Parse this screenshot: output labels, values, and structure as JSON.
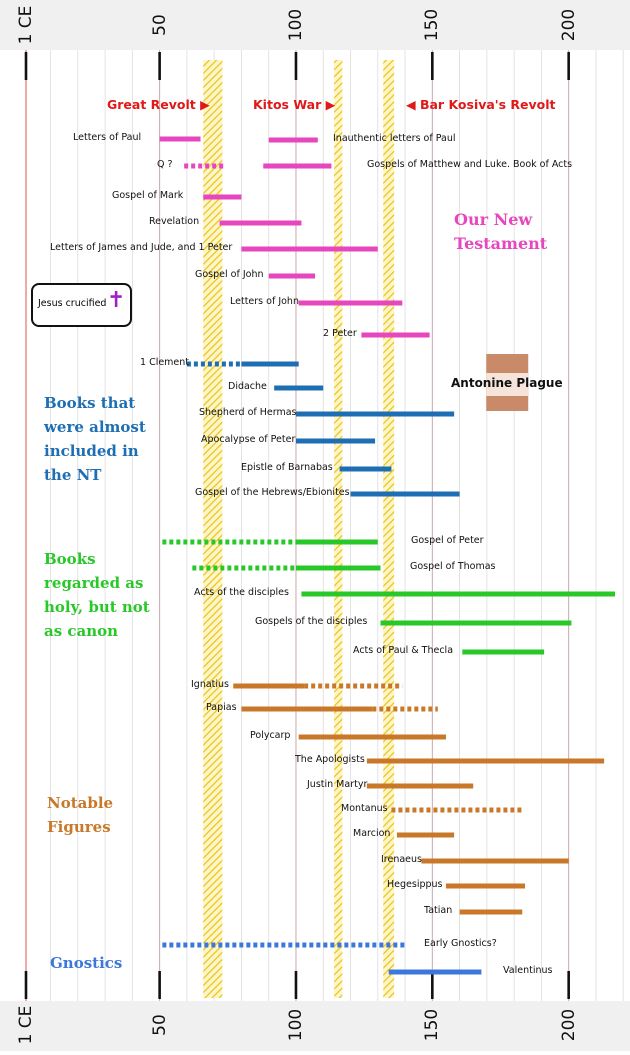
{
  "chart_data": {
    "type": "timeline",
    "axis": {
      "unit": "year CE",
      "min": 1,
      "max": 220,
      "ticks": [
        "1 CE",
        "50",
        "100",
        "150",
        "200"
      ]
    },
    "events": [
      {
        "name": "Great Revolt",
        "start": 66,
        "end": 73,
        "label": "Great Revolt",
        "arrow": "right"
      },
      {
        "name": "Kitos War",
        "start": 114,
        "end": 117,
        "label": "Kitos War",
        "arrow": "right"
      },
      {
        "name": "Bar Kosiva",
        "start": 132,
        "end": 136,
        "label": "Bar Kosiva's Revolt",
        "arrow": "left"
      }
    ],
    "plague": {
      "label": "Antonine Plague",
      "start": 165,
      "end": 180
    },
    "callout": {
      "label": "Jesus crucified",
      "icon": "cross-icon"
    },
    "sections": [
      {
        "name": "new-testament",
        "title": "Our New Testament",
        "color": "#e646be"
      },
      {
        "name": "almost",
        "title": "Books that were almost included in the NT",
        "color": "#1e6eb4"
      },
      {
        "name": "holy",
        "title": "Books regarded as holy, but not as canon",
        "color": "#28c828"
      },
      {
        "name": "figures",
        "title": "Notable Figures",
        "color": "#c87828"
      },
      {
        "name": "gnostics",
        "title": "Gnostics",
        "color": "#3c78dc"
      }
    ],
    "series": [
      {
        "label": "Letters of Paul",
        "color": "#e646be",
        "segs": [
          [
            50,
            65,
            "solid"
          ]
        ]
      },
      {
        "label": "Inauthentic letters of Paul",
        "color": "#e646be",
        "segs": [
          [
            90,
            108,
            "solid"
          ]
        ]
      },
      {
        "label": "Q ?",
        "color": "#e646be",
        "segs": [
          [
            59,
            74,
            "dotted"
          ]
        ]
      },
      {
        "label": "Gospels of Matthew and Luke. Book of Acts",
        "color": "#e646be",
        "segs": [
          [
            88,
            113,
            "solid"
          ]
        ]
      },
      {
        "label": "Gospel of Mark",
        "color": "#e646be",
        "segs": [
          [
            66,
            80,
            "solid"
          ]
        ]
      },
      {
        "label": "Revelation",
        "color": "#e646be",
        "segs": [
          [
            72,
            102,
            "solid"
          ]
        ]
      },
      {
        "label": "Letters of James and Jude, and 1 Peter",
        "color": "#e646be",
        "segs": [
          [
            80,
            130,
            "solid"
          ]
        ]
      },
      {
        "label": "Gospel of John",
        "color": "#e646be",
        "segs": [
          [
            90,
            107,
            "solid"
          ]
        ]
      },
      {
        "label": "Letters of John",
        "color": "#e646be",
        "segs": [
          [
            101,
            139,
            "solid"
          ]
        ]
      },
      {
        "label": "2 Peter",
        "color": "#e646be",
        "segs": [
          [
            124,
            149,
            "solid"
          ]
        ]
      },
      {
        "label": "1 Clement",
        "color": "#1e6eb4",
        "segs": [
          [
            60,
            80,
            "dotted"
          ],
          [
            80,
            101,
            "solid"
          ]
        ]
      },
      {
        "label": "Didache",
        "color": "#1e6eb4",
        "segs": [
          [
            92,
            110,
            "solid"
          ]
        ]
      },
      {
        "label": "Shepherd of Hermas",
        "color": "#1e6eb4",
        "segs": [
          [
            100,
            158,
            "solid"
          ]
        ]
      },
      {
        "label": "Apocalypse of Peter",
        "color": "#1e6eb4",
        "segs": [
          [
            100,
            129,
            "solid"
          ]
        ]
      },
      {
        "label": "Epistle of Barnabas",
        "color": "#1e6eb4",
        "segs": [
          [
            116,
            135,
            "solid"
          ]
        ]
      },
      {
        "label": "Gospel of the Hebrews/Ebionites",
        "color": "#1e6eb4",
        "segs": [
          [
            120,
            160,
            "solid"
          ]
        ]
      },
      {
        "label": "Gospel of Peter",
        "color": "#28c828",
        "segs": [
          [
            51,
            100,
            "dotted"
          ],
          [
            100,
            130,
            "solid"
          ]
        ]
      },
      {
        "label": "Gospel of Thomas",
        "color": "#28c828",
        "segs": [
          [
            62,
            100,
            "dotted"
          ],
          [
            100,
            131,
            "solid"
          ]
        ]
      },
      {
        "label": "Acts of the disciples",
        "color": "#28c828",
        "segs": [
          [
            102,
            217,
            "solid"
          ]
        ]
      },
      {
        "label": "Gospels of the disciples",
        "color": "#28c828",
        "segs": [
          [
            131,
            201,
            "solid"
          ]
        ]
      },
      {
        "label": "Acts of Paul & Thecla",
        "color": "#28c828",
        "segs": [
          [
            161,
            191,
            "solid"
          ]
        ]
      },
      {
        "label": "Ignatius",
        "color": "#c87828",
        "segs": [
          [
            77,
            103,
            "solid"
          ],
          [
            103,
            139,
            "dotted"
          ]
        ]
      },
      {
        "label": "Papias",
        "color": "#c87828",
        "segs": [
          [
            80,
            128,
            "solid"
          ],
          [
            128,
            152,
            "dotted"
          ]
        ]
      },
      {
        "label": "Polycarp",
        "color": "#c87828",
        "segs": [
          [
            101,
            155,
            "solid"
          ]
        ]
      },
      {
        "label": "The Apologists",
        "color": "#c87828",
        "segs": [
          [
            126,
            213,
            "solid"
          ]
        ]
      },
      {
        "label": "Justin Martyr",
        "color": "#c87828",
        "segs": [
          [
            126,
            165,
            "solid"
          ]
        ]
      },
      {
        "label": "Montanus",
        "color": "#c87828",
        "segs": [
          [
            135,
            183,
            "dotted"
          ]
        ]
      },
      {
        "label": "Marcion",
        "color": "#c87828",
        "segs": [
          [
            137,
            158,
            "solid"
          ]
        ]
      },
      {
        "label": "Irenaeus",
        "color": "#c87828",
        "segs": [
          [
            146,
            200,
            "solid"
          ]
        ]
      },
      {
        "label": "Hegesippus",
        "color": "#c87828",
        "segs": [
          [
            155,
            184,
            "solid"
          ]
        ]
      },
      {
        "label": "Tatian",
        "color": "#c87828",
        "segs": [
          [
            160,
            183,
            "solid"
          ]
        ]
      },
      {
        "label": "Early Gnostics?",
        "color": "#3c78dc",
        "segs": [
          [
            51,
            140,
            "dotted"
          ]
        ]
      },
      {
        "label": "Valentinus",
        "color": "#3c78dc",
        "segs": [
          [
            134,
            168,
            "solid"
          ]
        ]
      }
    ]
  }
}
